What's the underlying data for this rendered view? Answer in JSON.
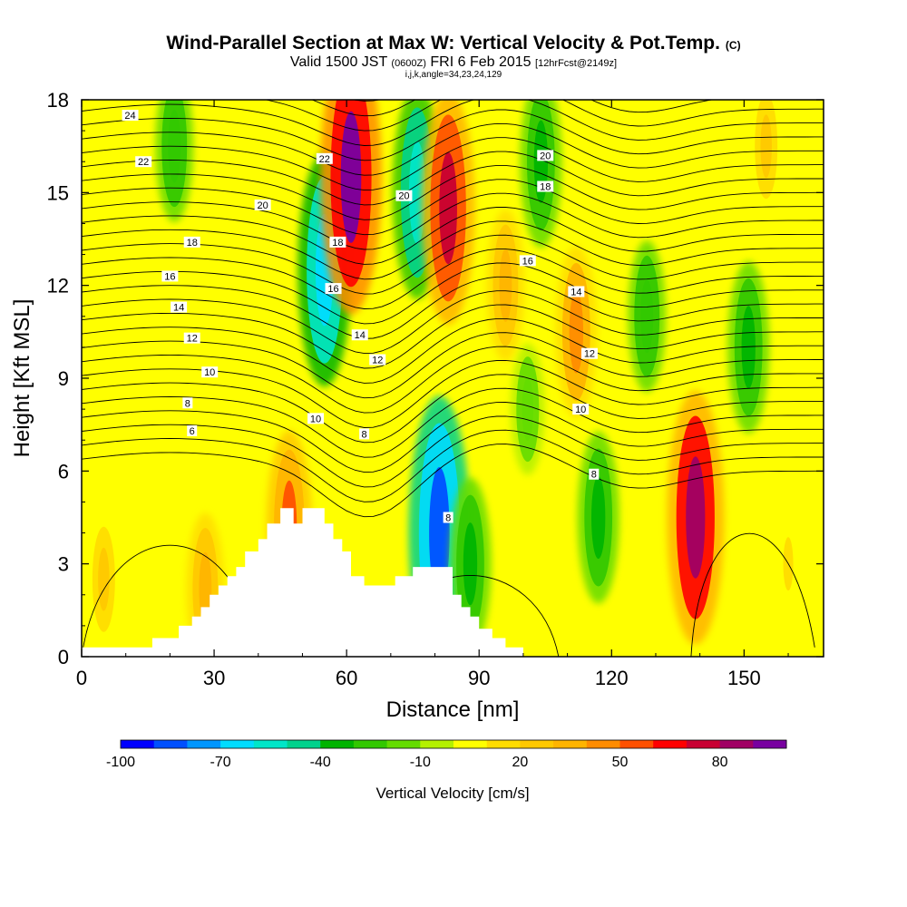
{
  "header": {
    "title": "Wind-Parallel Section at Max W: Vertical Velocity & Pot.Temp.",
    "title_mark": "(C)",
    "valid": "Valid 1500 JST",
    "utc": "(0600Z)",
    "date": "FRI 6 Feb 2015",
    "fcst": "[12hrFcst@2149z]",
    "indices": "i,j,k,angle=34,23,24,129"
  },
  "chart_data": {
    "type": "heatmap",
    "xlabel": "Distance [nm]",
    "ylabel": "Height [Kft MSL]",
    "xlim": [
      0,
      168
    ],
    "ylim": [
      0,
      18
    ],
    "x_ticks": [
      "0",
      "30",
      "60",
      "90",
      "120",
      "150"
    ],
    "x_tick_values": [
      0,
      30,
      60,
      90,
      120,
      150
    ],
    "y_ticks": [
      "0",
      "3",
      "6",
      "9",
      "12",
      "15",
      "18"
    ],
    "y_tick_values": [
      0,
      3,
      6,
      9,
      12,
      15,
      18
    ],
    "colorbar": {
      "title": "Vertical Velocity [cm/s]",
      "tick_labels": [
        "-100",
        "-70",
        "-40",
        "-10",
        "20",
        "50",
        "80"
      ],
      "tick_values": [
        -100,
        -70,
        -40,
        -10,
        20,
        50,
        80
      ],
      "levels": [
        -100,
        -90,
        -80,
        -70,
        -60,
        -50,
        -40,
        -30,
        -20,
        -10,
        0,
        10,
        20,
        30,
        40,
        50,
        60,
        70,
        80,
        90,
        100
      ],
      "colors": [
        "#0000ff",
        "#0050ff",
        "#0096ff",
        "#00dcff",
        "#00e6c8",
        "#00d28c",
        "#00b400",
        "#32c800",
        "#64dc00",
        "#b4f000",
        "#ffff00",
        "#ffdc00",
        "#ffc800",
        "#ffb400",
        "#ff8c00",
        "#ff5000",
        "#ff0000",
        "#c80032",
        "#a00064",
        "#7800a0"
      ]
    },
    "velocity_features": [
      {
        "x": 5,
        "y": 2.5,
        "value": 20
      },
      {
        "x": 28,
        "y": 2.2,
        "value": 30
      },
      {
        "x": 47,
        "y": 4.2,
        "value": 50
      },
      {
        "x": 55,
        "y": 12.5,
        "value": -70
      },
      {
        "x": 61,
        "y": 15.5,
        "value": 90
      },
      {
        "x": 76,
        "y": 15.0,
        "value": -60
      },
      {
        "x": 83,
        "y": 14.5,
        "value": 70
      },
      {
        "x": 81,
        "y": 4.0,
        "value": -90
      },
      {
        "x": 88,
        "y": 3.0,
        "value": -40
      },
      {
        "x": 96,
        "y": 12.0,
        "value": 30
      },
      {
        "x": 104,
        "y": 16.0,
        "value": -40
      },
      {
        "x": 112,
        "y": 10.5,
        "value": 40
      },
      {
        "x": 117,
        "y": 4.5,
        "value": -40
      },
      {
        "x": 128,
        "y": 11.0,
        "value": -30
      },
      {
        "x": 139,
        "y": 4.5,
        "value": 80
      },
      {
        "x": 151,
        "y": 10.0,
        "value": -40
      },
      {
        "x": 21,
        "y": 16.5,
        "value": -30
      },
      {
        "x": 101,
        "y": 8.0,
        "value": -20
      },
      {
        "x": 160,
        "y": 3.0,
        "value": 10
      },
      {
        "x": 155,
        "y": 16.5,
        "value": 20
      }
    ],
    "theta_contours": [
      {
        "label": "24",
        "label_x": 11,
        "label_y": 17.5
      },
      {
        "label": "22",
        "label_x": 14,
        "label_y": 16.0
      },
      {
        "label": "22",
        "label_x": 55,
        "label_y": 16.1
      },
      {
        "label": "20",
        "label_x": 41,
        "label_y": 14.6
      },
      {
        "label": "20",
        "label_x": 105,
        "label_y": 16.2
      },
      {
        "label": "20",
        "label_x": 73,
        "label_y": 14.9
      },
      {
        "label": "18",
        "label_x": 25,
        "label_y": 13.4
      },
      {
        "label": "18",
        "label_x": 58,
        "label_y": 13.4
      },
      {
        "label": "18",
        "label_x": 105,
        "label_y": 15.2
      },
      {
        "label": "16",
        "label_x": 20,
        "label_y": 12.3
      },
      {
        "label": "16",
        "label_x": 57,
        "label_y": 11.9
      },
      {
        "label": "16",
        "label_x": 101,
        "label_y": 12.8
      },
      {
        "label": "14",
        "label_x": 22,
        "label_y": 11.3
      },
      {
        "label": "14",
        "label_x": 63,
        "label_y": 10.4
      },
      {
        "label": "14",
        "label_x": 112,
        "label_y": 11.8
      },
      {
        "label": "12",
        "label_x": 25,
        "label_y": 10.3
      },
      {
        "label": "12",
        "label_x": 67,
        "label_y": 9.6
      },
      {
        "label": "12",
        "label_x": 115,
        "label_y": 9.8
      },
      {
        "label": "10",
        "label_x": 29,
        "label_y": 9.2
      },
      {
        "label": "10",
        "label_x": 53,
        "label_y": 7.7
      },
      {
        "label": "10",
        "label_x": 113,
        "label_y": 8.0
      },
      {
        "label": "8",
        "label_x": 24,
        "label_y": 8.2
      },
      {
        "label": "8",
        "label_x": 64,
        "label_y": 7.2
      },
      {
        "label": "8",
        "label_x": 116,
        "label_y": 5.9
      },
      {
        "label": "8",
        "label_x": 83,
        "label_y": 4.5
      },
      {
        "label": "6",
        "label_x": 25,
        "label_y": 7.3
      }
    ],
    "terrain": [
      [
        0,
        0.3
      ],
      [
        16,
        0.3
      ],
      [
        16,
        0.6
      ],
      [
        22,
        0.6
      ],
      [
        22,
        1.0
      ],
      [
        25,
        1.0
      ],
      [
        25,
        1.3
      ],
      [
        27,
        1.3
      ],
      [
        27,
        1.6
      ],
      [
        29,
        1.6
      ],
      [
        29,
        2.0
      ],
      [
        31,
        2.0
      ],
      [
        31,
        2.3
      ],
      [
        33,
        2.3
      ],
      [
        33,
        2.6
      ],
      [
        35,
        2.6
      ],
      [
        35,
        2.9
      ],
      [
        37,
        2.9
      ],
      [
        37,
        3.4
      ],
      [
        40,
        3.4
      ],
      [
        40,
        3.8
      ],
      [
        42,
        3.8
      ],
      [
        42,
        4.3
      ],
      [
        45,
        4.3
      ],
      [
        45,
        4.8
      ],
      [
        48,
        4.8
      ],
      [
        48,
        4.3
      ],
      [
        50,
        4.3
      ],
      [
        50,
        4.8
      ],
      [
        55,
        4.8
      ],
      [
        55,
        4.3
      ],
      [
        57,
        4.3
      ],
      [
        57,
        3.8
      ],
      [
        59,
        3.8
      ],
      [
        59,
        3.4
      ],
      [
        61,
        3.4
      ],
      [
        61,
        2.6
      ],
      [
        64,
        2.6
      ],
      [
        64,
        2.3
      ],
      [
        71,
        2.3
      ],
      [
        71,
        2.6
      ],
      [
        75,
        2.6
      ],
      [
        75,
        2.9
      ],
      [
        84,
        2.9
      ],
      [
        84,
        2.0
      ],
      [
        86,
        2.0
      ],
      [
        86,
        1.6
      ],
      [
        88,
        1.6
      ],
      [
        88,
        1.3
      ],
      [
        90,
        1.3
      ],
      [
        90,
        0.9
      ],
      [
        93,
        0.9
      ],
      [
        93,
        0.6
      ],
      [
        96,
        0.6
      ],
      [
        96,
        0.3
      ],
      [
        100,
        0.3
      ],
      [
        100,
        0.0
      ]
    ]
  }
}
